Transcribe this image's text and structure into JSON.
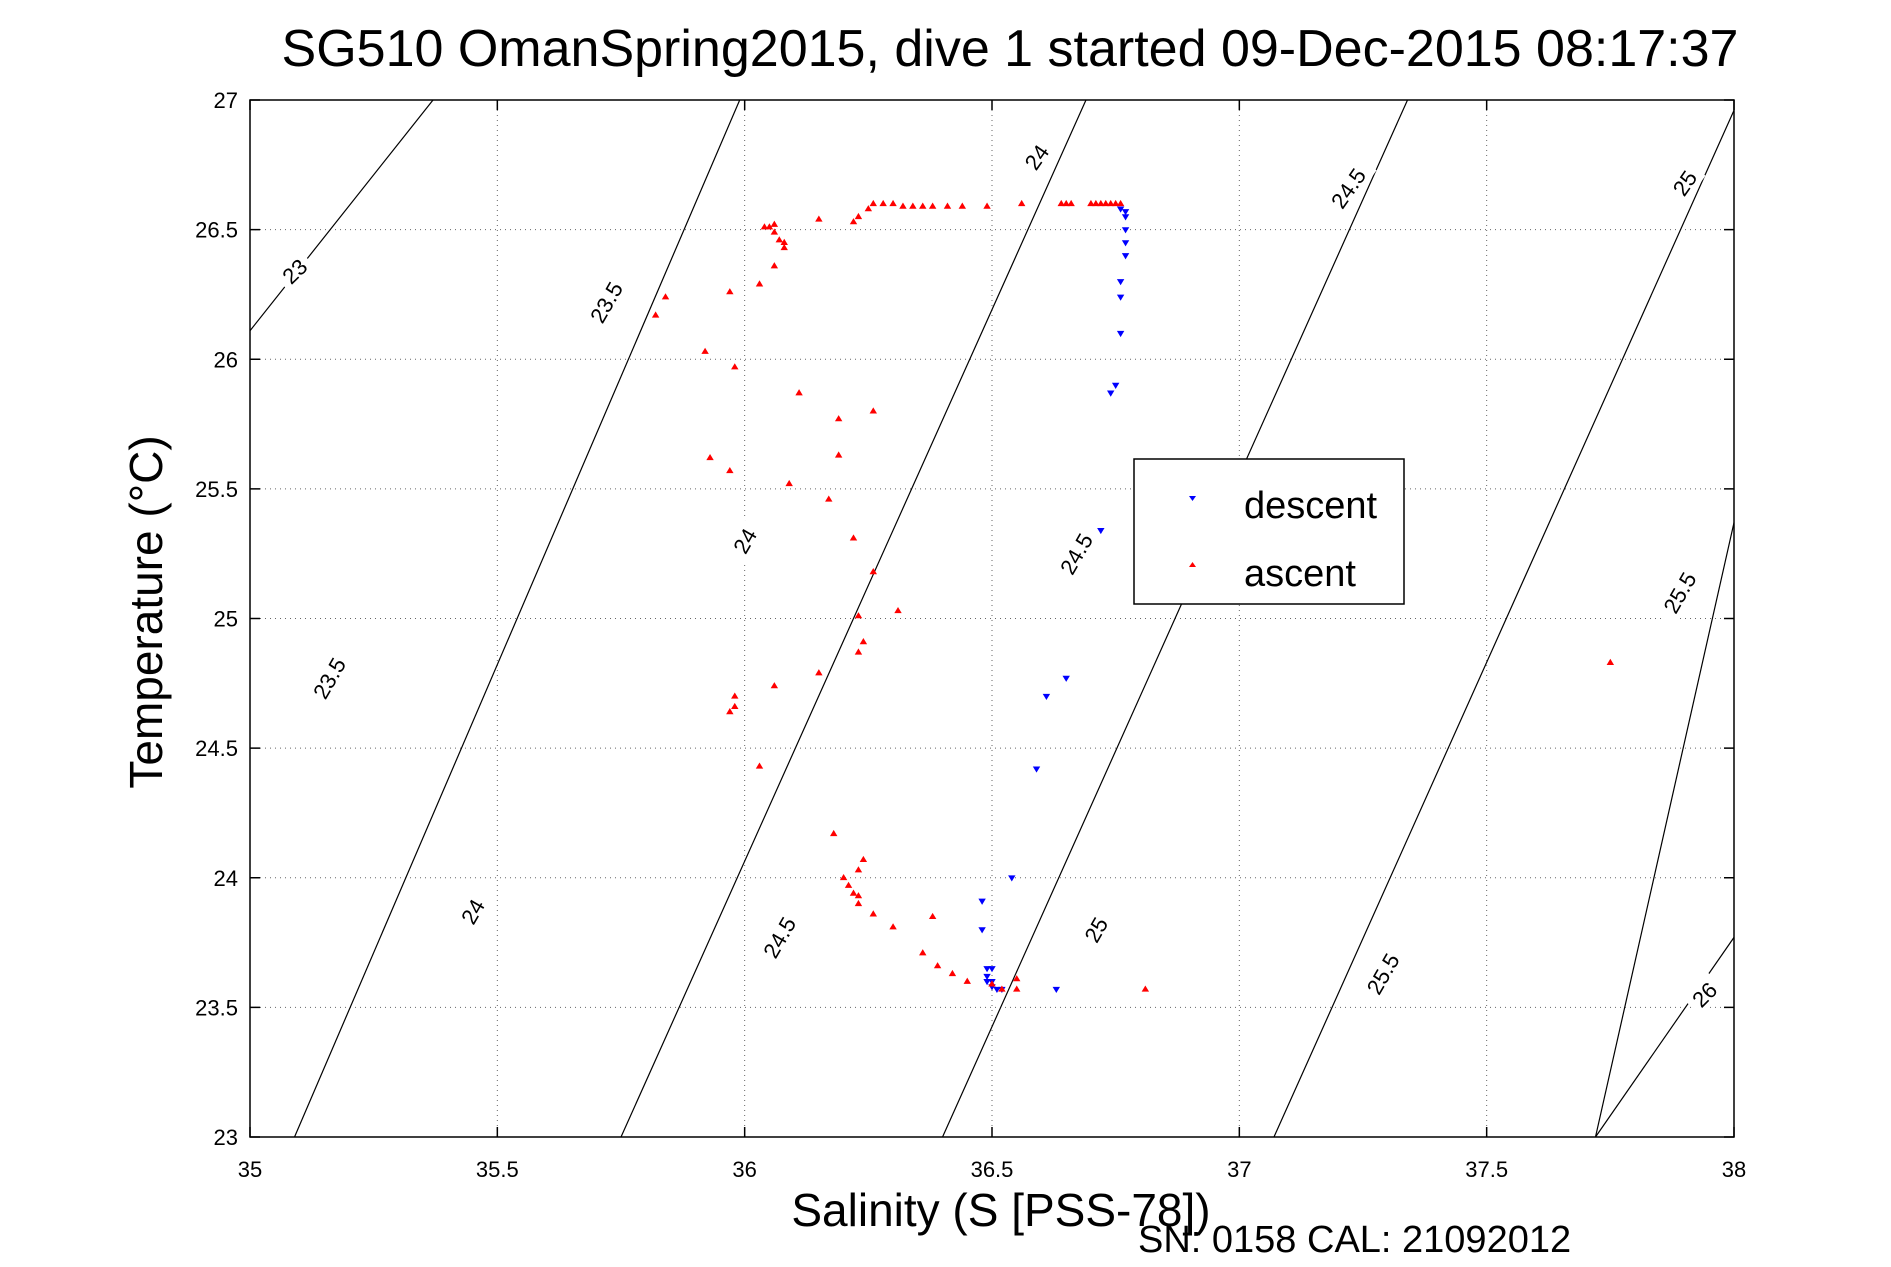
{
  "chart_data": {
    "type": "scatter",
    "title": "SG510 OmanSpring2015, dive 1 started 09-Dec-2015 08:17:37",
    "xlabel": "Salinity (S [PSS-78])",
    "ylabel": "Temperature (°C)",
    "xlim": [
      35,
      38
    ],
    "ylim": [
      23,
      27
    ],
    "xticks": [
      35,
      35.5,
      36,
      36.5,
      37,
      37.5,
      38
    ],
    "xtick_labels": [
      "35",
      "35.5",
      "36",
      "36.5",
      "37",
      "37.5",
      "38"
    ],
    "yticks": [
      23,
      23.5,
      24,
      24.5,
      25,
      25.5,
      26,
      26.5,
      27
    ],
    "ytick_labels": [
      "23",
      "23.5",
      "24",
      "24.5",
      "25",
      "25.5",
      "26",
      "26.5",
      "27"
    ],
    "grid": true,
    "legend_position": "upper-right-center",
    "series": [
      {
        "name": "descent",
        "color": "#0000ff",
        "marker": "triangle-down",
        "points": [
          [
            36.76,
            26.58
          ],
          [
            36.77,
            26.57
          ],
          [
            36.77,
            26.55
          ],
          [
            36.77,
            26.5
          ],
          [
            36.77,
            26.45
          ],
          [
            36.77,
            26.4
          ],
          [
            36.76,
            26.3
          ],
          [
            36.76,
            26.24
          ],
          [
            36.76,
            26.1
          ],
          [
            36.75,
            25.9
          ],
          [
            36.74,
            25.87
          ],
          [
            36.72,
            25.34
          ],
          [
            36.65,
            24.77
          ],
          [
            36.61,
            24.7
          ],
          [
            36.59,
            24.42
          ],
          [
            36.54,
            24.0
          ],
          [
            36.48,
            23.91
          ],
          [
            36.48,
            23.8
          ],
          [
            36.49,
            23.65
          ],
          [
            36.5,
            23.65
          ],
          [
            36.49,
            23.62
          ],
          [
            36.49,
            23.6
          ],
          [
            36.5,
            23.6
          ],
          [
            36.5,
            23.58
          ],
          [
            36.51,
            23.57
          ],
          [
            36.52,
            23.57
          ],
          [
            36.63,
            23.57
          ]
        ]
      },
      {
        "name": "ascent",
        "color": "#ff0000",
        "marker": "triangle-up",
        "points": [
          [
            36.76,
            26.6
          ],
          [
            36.75,
            26.6
          ],
          [
            36.74,
            26.6
          ],
          [
            36.73,
            26.6
          ],
          [
            36.72,
            26.6
          ],
          [
            36.71,
            26.6
          ],
          [
            36.7,
            26.6
          ],
          [
            36.66,
            26.6
          ],
          [
            36.65,
            26.6
          ],
          [
            36.64,
            26.6
          ],
          [
            36.56,
            26.6
          ],
          [
            36.49,
            26.59
          ],
          [
            36.44,
            26.59
          ],
          [
            36.41,
            26.59
          ],
          [
            36.38,
            26.59
          ],
          [
            36.36,
            26.59
          ],
          [
            36.34,
            26.59
          ],
          [
            36.32,
            26.59
          ],
          [
            36.3,
            26.6
          ],
          [
            36.28,
            26.6
          ],
          [
            36.26,
            26.6
          ],
          [
            36.25,
            26.58
          ],
          [
            36.23,
            26.55
          ],
          [
            36.22,
            26.53
          ],
          [
            36.15,
            26.54
          ],
          [
            36.06,
            26.52
          ],
          [
            36.05,
            26.51
          ],
          [
            36.04,
            26.51
          ],
          [
            36.06,
            26.49
          ],
          [
            36.07,
            26.46
          ],
          [
            36.08,
            26.45
          ],
          [
            36.08,
            26.43
          ],
          [
            36.06,
            26.36
          ],
          [
            36.03,
            26.29
          ],
          [
            35.97,
            26.26
          ],
          [
            35.84,
            26.24
          ],
          [
            35.82,
            26.17
          ],
          [
            35.92,
            26.03
          ],
          [
            35.98,
            25.97
          ],
          [
            36.11,
            25.87
          ],
          [
            36.26,
            25.8
          ],
          [
            36.19,
            25.77
          ],
          [
            36.19,
            25.63
          ],
          [
            35.93,
            25.62
          ],
          [
            35.97,
            25.57
          ],
          [
            36.09,
            25.52
          ],
          [
            36.17,
            25.46
          ],
          [
            36.22,
            25.31
          ],
          [
            36.26,
            25.18
          ],
          [
            36.31,
            25.03
          ],
          [
            36.23,
            25.01
          ],
          [
            36.24,
            24.91
          ],
          [
            36.23,
            24.87
          ],
          [
            36.15,
            24.79
          ],
          [
            36.06,
            24.74
          ],
          [
            35.98,
            24.7
          ],
          [
            35.98,
            24.66
          ],
          [
            35.97,
            24.64
          ],
          [
            36.03,
            24.43
          ],
          [
            36.18,
            24.17
          ],
          [
            36.24,
            24.07
          ],
          [
            36.23,
            24.03
          ],
          [
            36.2,
            24.0
          ],
          [
            36.21,
            23.97
          ],
          [
            36.22,
            23.94
          ],
          [
            36.23,
            23.93
          ],
          [
            36.23,
            23.9
          ],
          [
            36.26,
            23.86
          ],
          [
            36.3,
            23.81
          ],
          [
            36.38,
            23.85
          ],
          [
            36.36,
            23.71
          ],
          [
            36.39,
            23.66
          ],
          [
            36.42,
            23.63
          ],
          [
            36.45,
            23.6
          ],
          [
            36.5,
            23.59
          ],
          [
            36.55,
            23.61
          ],
          [
            36.52,
            23.57
          ],
          [
            36.55,
            23.57
          ],
          [
            36.81,
            23.57
          ],
          [
            37.75,
            24.83
          ]
        ]
      }
    ],
    "contours": [
      {
        "label": "23",
        "x1": 35,
        "y1": 26.11,
        "x2": 35.37,
        "y2": 27,
        "label_x": 35.09,
        "label_y": 26.34,
        "label_angle": -44
      },
      {
        "label": "23.5",
        "x1": 35.09,
        "y1": 23,
        "x2": 35.99,
        "y2": 27,
        "label_x": 35.16,
        "label_y": 24.77,
        "label_angle": -60
      },
      {
        "label": "23.5",
        "label_x": 35.72,
        "label_y": 26.22,
        "label_angle": -60
      },
      {
        "label": "24",
        "x1": 35.75,
        "y1": 23,
        "x2": 36.69,
        "y2": 27,
        "label_x": 35.45,
        "label_y": 23.87,
        "label_angle": -60
      },
      {
        "label": "24",
        "label_x": 36.0,
        "label_y": 25.3,
        "label_angle": -60
      },
      {
        "label": "24",
        "label_x": 36.59,
        "label_y": 26.78,
        "label_angle": -55
      },
      {
        "label": "24.5",
        "x1": 36.4,
        "y1": 23,
        "x2": 37.34,
        "y2": 27,
        "label_x": 36.07,
        "label_y": 23.77,
        "label_angle": -60
      },
      {
        "label": "24.5",
        "label_x": 36.67,
        "label_y": 25.25,
        "label_angle": -60
      },
      {
        "label": "24.5",
        "label_x": 37.22,
        "label_y": 26.66,
        "label_angle": -55
      },
      {
        "label": "25",
        "x1": 37.07,
        "y1": 23,
        "x2": 38,
        "y2": 26.96,
        "label_x": 36.71,
        "label_y": 23.8,
        "label_angle": -60
      },
      {
        "label": "25",
        "label_x": 37.9,
        "label_y": 26.68,
        "label_angle": -55
      },
      {
        "label": "25.5",
        "x1": 37.72,
        "y1": 23,
        "x2": 38,
        "y2": 25.37,
        "label_x": 37.29,
        "label_y": 23.63,
        "label_angle": -60
      },
      {
        "label": "25.5",
        "label_x": 37.89,
        "label_y": 25.1,
        "label_angle": -60
      },
      {
        "label": "26",
        "x1": 37.72,
        "y1": 23,
        "x2": 38,
        "y2": 23.77,
        "label_x": 37.94,
        "label_y": 23.55,
        "label_angle": -45
      }
    ],
    "footer": "SN: 0158  CAL: 21092012"
  }
}
